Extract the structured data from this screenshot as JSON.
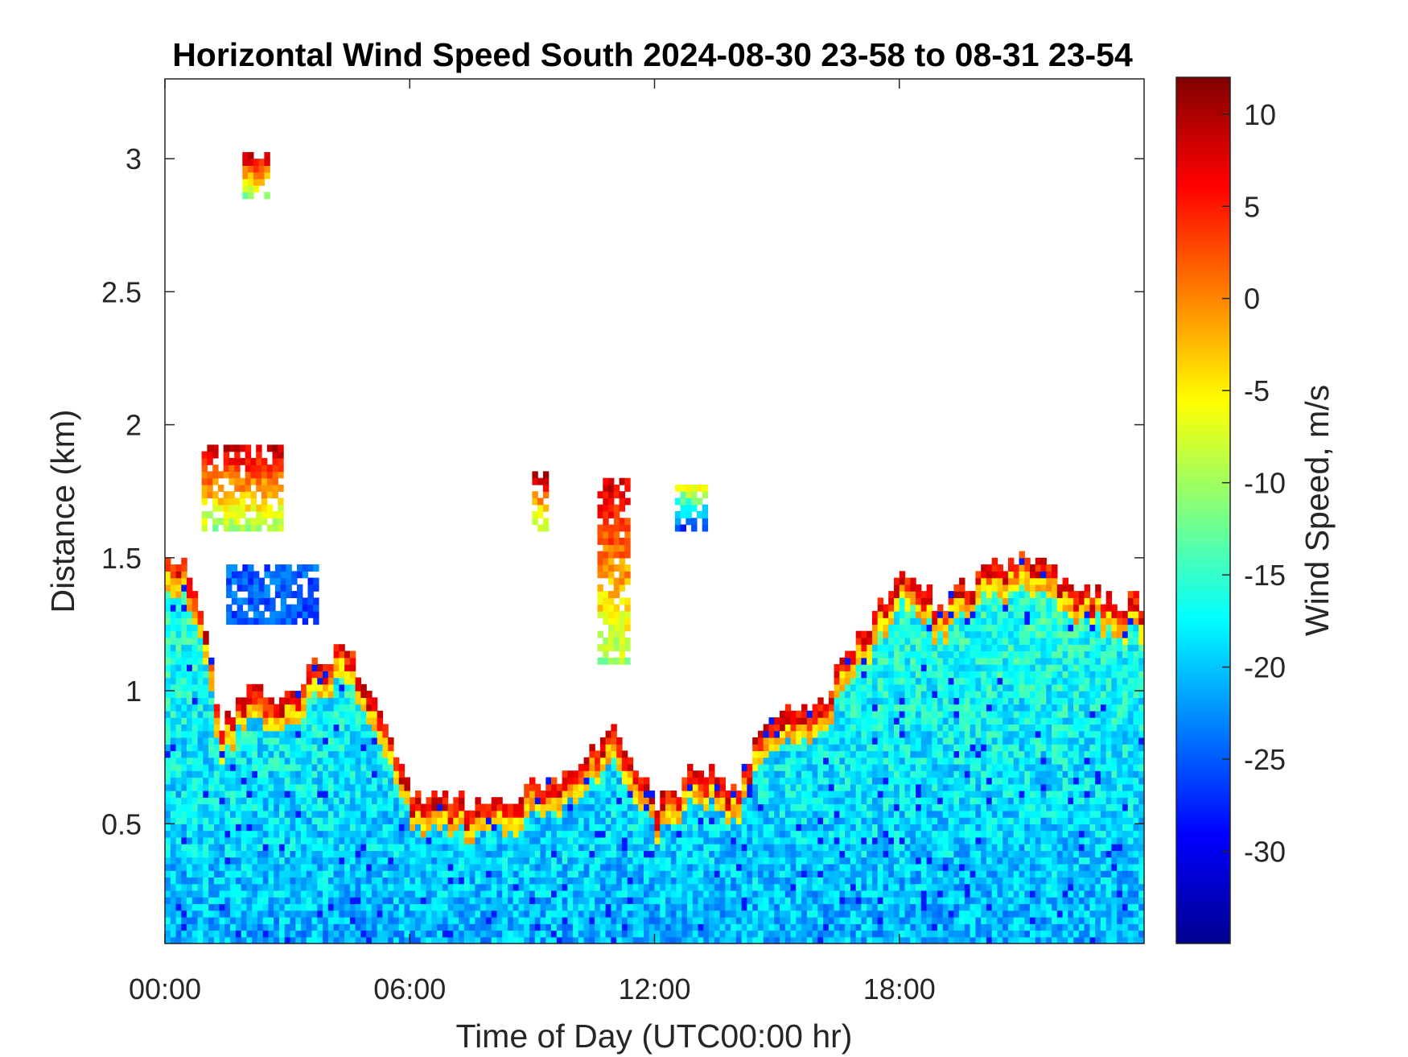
{
  "chart_data": {
    "type": "heatmap",
    "title": "Horizontal Wind Speed South 2024-08-30 23-58 to 08-31 23-54",
    "xlabel": "Time of Day (UTC00:00 hr)",
    "ylabel": "Distance (km)",
    "xlim_hours": [
      0,
      24
    ],
    "ylim_km": [
      0.05,
      3.3
    ],
    "x_ticks": [
      {
        "hour": 0,
        "label": "00:00"
      },
      {
        "hour": 6,
        "label": "06:00"
      },
      {
        "hour": 12,
        "label": "12:00"
      },
      {
        "hour": 18,
        "label": "18:00"
      }
    ],
    "y_ticks": [
      {
        "value": 0.5,
        "label": "0.5"
      },
      {
        "value": 1,
        "label": "1"
      },
      {
        "value": 1.5,
        "label": "1.5"
      },
      {
        "value": 2,
        "label": "2"
      },
      {
        "value": 2.5,
        "label": "2.5"
      },
      {
        "value": 3,
        "label": "3"
      }
    ],
    "colorbar": {
      "label": "Wind Speed, m/s",
      "colormap": "jet",
      "range": [
        -35,
        12
      ],
      "ticks": [
        {
          "value": 10,
          "label": "10"
        },
        {
          "value": 5,
          "label": "5"
        },
        {
          "value": 0,
          "label": "0"
        },
        {
          "value": -5,
          "label": "-5"
        },
        {
          "value": -10,
          "label": "-10"
        },
        {
          "value": -15,
          "label": "-15"
        },
        {
          "value": -20,
          "label": "-20"
        },
        {
          "value": -25,
          "label": "-25"
        },
        {
          "value": -30,
          "label": "-30"
        }
      ]
    },
    "grid": false,
    "data_coverage_top_km": [
      [
        0.0,
        1.45
      ],
      [
        0.5,
        1.45
      ],
      [
        1.0,
        1.2
      ],
      [
        1.3,
        0.85
      ],
      [
        2.0,
        1.0
      ],
      [
        3.0,
        0.95
      ],
      [
        3.5,
        1.05
      ],
      [
        4.2,
        1.15
      ],
      [
        5.0,
        1.0
      ],
      [
        6.0,
        0.6
      ],
      [
        7.0,
        0.57
      ],
      [
        8.0,
        0.55
      ],
      [
        9.0,
        0.65
      ],
      [
        10.0,
        0.7
      ],
      [
        11.0,
        0.85
      ],
      [
        12.0,
        0.55
      ],
      [
        13.0,
        0.7
      ],
      [
        14.0,
        0.62
      ],
      [
        14.5,
        0.85
      ],
      [
        16.0,
        0.95
      ],
      [
        17.0,
        1.2
      ],
      [
        18.0,
        1.45
      ],
      [
        19.0,
        1.3
      ],
      [
        20.0,
        1.45
      ],
      [
        21.0,
        1.5
      ],
      [
        22.0,
        1.4
      ],
      [
        23.0,
        1.35
      ],
      [
        24.0,
        1.3
      ]
    ],
    "isolated_echoes": [
      {
        "time_start_h": 1.9,
        "time_end_h": 2.5,
        "dist_min_km": 2.85,
        "dist_max_km": 3.0,
        "peak_mps": 8
      },
      {
        "time_start_h": 0.9,
        "time_end_h": 2.9,
        "dist_min_km": 1.6,
        "dist_max_km": 1.9,
        "peak_mps": 8
      },
      {
        "time_start_h": 1.5,
        "time_end_h": 3.7,
        "dist_min_km": 1.25,
        "dist_max_km": 1.45,
        "peak_mps": -25
      },
      {
        "time_start_h": 9.0,
        "time_end_h": 9.3,
        "dist_min_km": 1.6,
        "dist_max_km": 1.8,
        "peak_mps": 8
      },
      {
        "time_start_h": 10.6,
        "time_end_h": 11.3,
        "dist_min_km": 1.1,
        "dist_max_km": 1.78,
        "peak_mps": 8
      },
      {
        "time_start_h": 12.5,
        "time_end_h": 13.2,
        "dist_min_km": 1.6,
        "dist_max_km": 1.75,
        "peak_mps": -8
      }
    ]
  }
}
